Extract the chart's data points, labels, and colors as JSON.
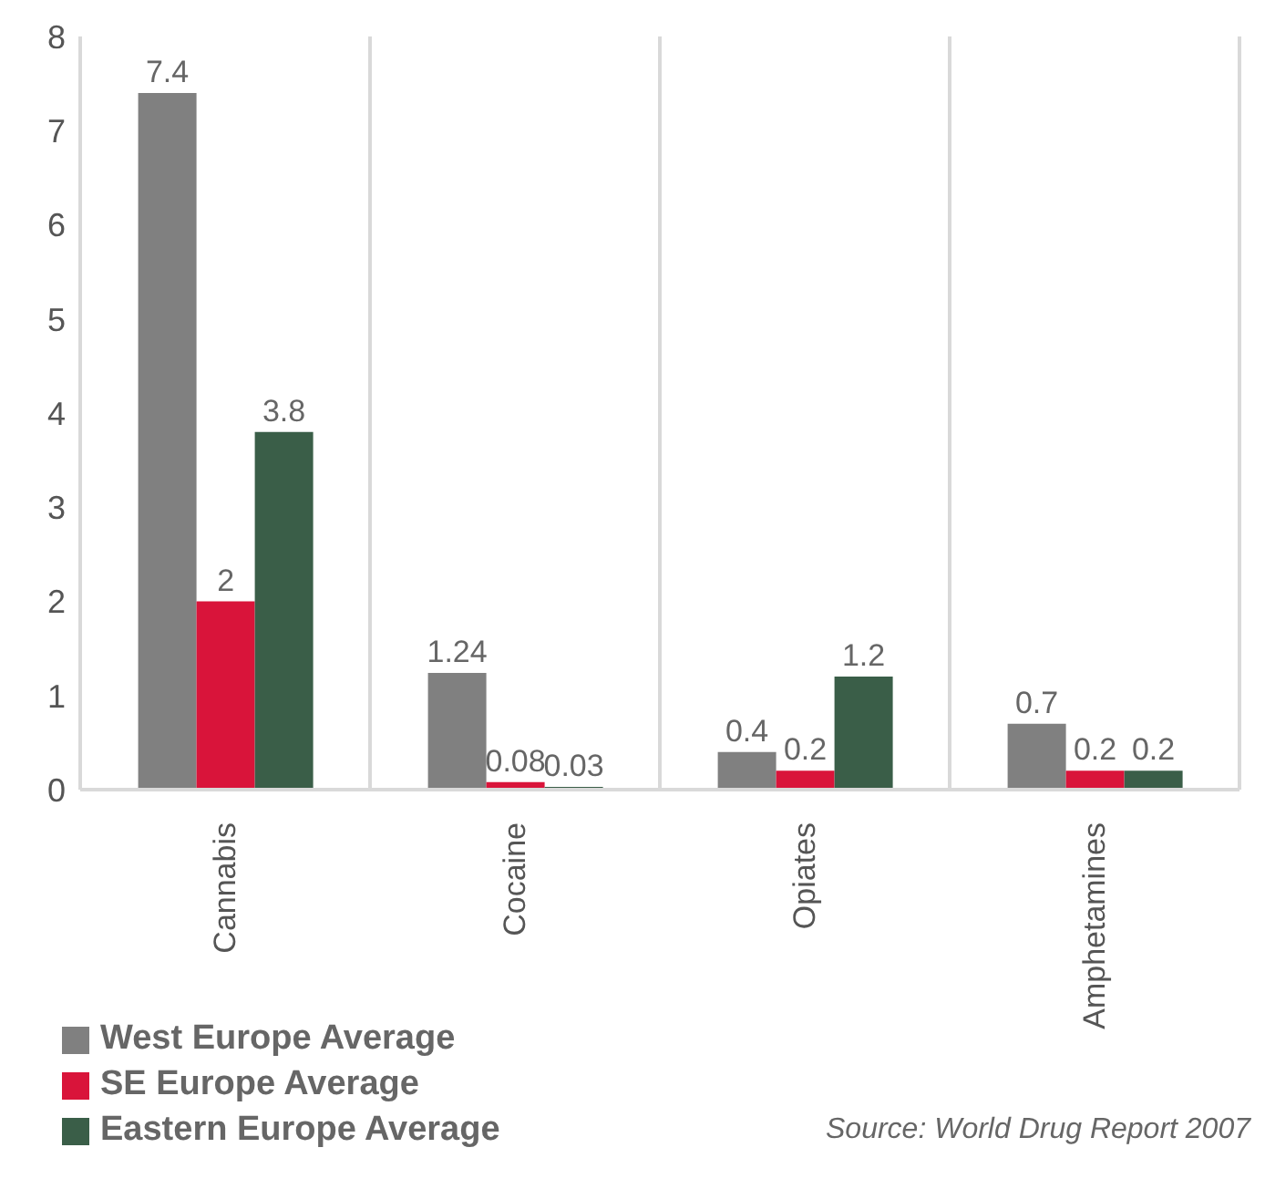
{
  "chart_data": {
    "type": "bar",
    "categories": [
      "Cannabis",
      "Cocaine",
      "Opiates",
      "Amphetamines"
    ],
    "series": [
      {
        "name": "West Europe Average",
        "color": "#808080",
        "values": [
          7.4,
          1.24,
          0.4,
          0.7
        ]
      },
      {
        "name": "SE Europe Average",
        "color": "#d9143a",
        "values": [
          2,
          0.08,
          0.2,
          0.2
        ]
      },
      {
        "name": "Eastern Europe Average",
        "color": "#3a5e48",
        "values": [
          3.8,
          0.03,
          1.2,
          0.2
        ]
      }
    ],
    "ylim": [
      0,
      8
    ],
    "yticks": [
      0,
      1,
      2,
      3,
      4,
      5,
      6,
      7,
      8
    ],
    "grid": "x",
    "legend": "bottom left",
    "data_labels": true,
    "annotations": [
      "Source: World Drug Report 2007"
    ]
  }
}
